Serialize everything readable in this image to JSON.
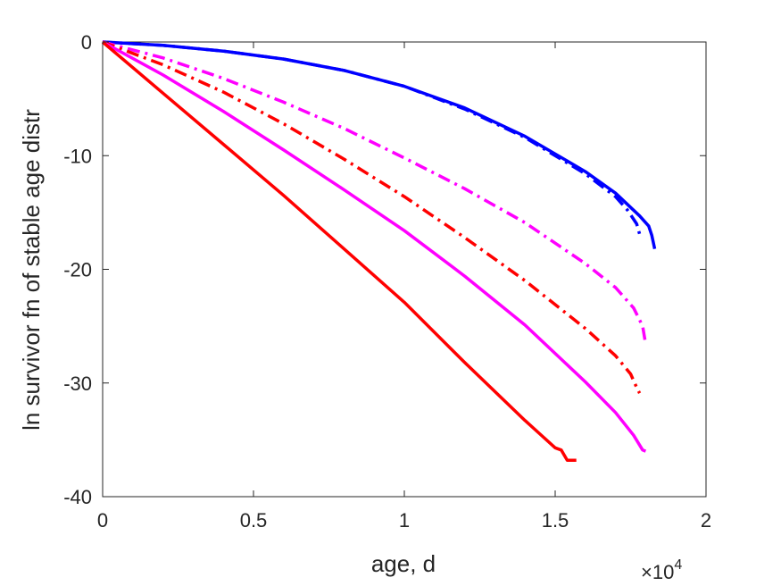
{
  "chart_data": {
    "type": "line",
    "xlabel": "age, d",
    "ylabel": "ln survivor fn of stable age distr",
    "x_exponent_label": {
      "base": "×10",
      "exponent": "4"
    },
    "xlim": [
      0,
      20000
    ],
    "ylim": [
      -40,
      0
    ],
    "xticks": [
      0,
      5000,
      10000,
      15000,
      20000
    ],
    "xtick_labels": [
      "0",
      "0.5",
      "1",
      "1.5",
      "2"
    ],
    "yticks": [
      0,
      -10,
      -20,
      -30,
      -40
    ],
    "ytick_labels": [
      "0",
      "-10",
      "-20",
      "-30",
      "-40"
    ],
    "grid": false,
    "legend": "none",
    "series": [
      {
        "color": "#0000ff",
        "dash": "solid",
        "x": [
          0,
          2000,
          4000,
          6000,
          8000,
          10000,
          12000,
          14000,
          16000,
          17000,
          17800,
          18100,
          18200,
          18300
        ],
        "y": [
          0,
          -0.3,
          -0.8,
          -1.5,
          -2.5,
          -3.9,
          -5.8,
          -8.3,
          -11.4,
          -13.3,
          -15.3,
          -16.2,
          -17.0,
          -18.2
        ]
      },
      {
        "color": "#0000ff",
        "dash": "dashdot",
        "x": [
          0,
          2000,
          4000,
          6000,
          8000,
          10000,
          12000,
          14000,
          16000,
          17000,
          17400,
          17700,
          17800
        ],
        "y": [
          0,
          -0.3,
          -0.8,
          -1.5,
          -2.5,
          -3.9,
          -5.9,
          -8.4,
          -11.6,
          -13.6,
          -14.8,
          -16.0,
          -16.9
        ]
      },
      {
        "color": "#ff00ff",
        "dash": "dashdot",
        "x": [
          0,
          2000,
          4000,
          6000,
          8000,
          10000,
          12000,
          14000,
          16000,
          17000,
          17600,
          17900,
          18000
        ],
        "y": [
          0,
          -1.4,
          -3.2,
          -5.3,
          -7.6,
          -10.2,
          -12.9,
          -15.9,
          -19.5,
          -21.6,
          -23.4,
          -25.0,
          -26.6
        ]
      },
      {
        "color": "#ff0000",
        "dash": "dashdot",
        "x": [
          0,
          2000,
          4000,
          6000,
          8000,
          10000,
          12000,
          14000,
          16000,
          17000,
          17500,
          17700,
          17800
        ],
        "y": [
          0,
          -2.0,
          -4.4,
          -7.2,
          -10.3,
          -13.6,
          -17.2,
          -21.0,
          -25.2,
          -27.6,
          -29.2,
          -30.4,
          -30.9
        ]
      },
      {
        "color": "#ff00ff",
        "dash": "solid",
        "x": [
          0,
          2000,
          4000,
          6000,
          8000,
          10000,
          12000,
          14000,
          16000,
          17000,
          17600,
          17900,
          18000
        ],
        "y": [
          0,
          -2.9,
          -6.1,
          -9.5,
          -13.0,
          -16.6,
          -20.6,
          -24.9,
          -29.9,
          -32.6,
          -34.6,
          -35.9,
          -36.0
        ]
      },
      {
        "color": "#ff0000",
        "dash": "solid",
        "x": [
          0,
          2000,
          4000,
          6000,
          8000,
          10000,
          12000,
          14000,
          14500,
          15000,
          15200,
          15400,
          15500,
          15700
        ],
        "y": [
          0,
          -4.5,
          -9.0,
          -13.5,
          -18.2,
          -22.9,
          -28.2,
          -33.3,
          -34.5,
          -35.7,
          -35.9,
          -36.8,
          -36.8,
          -36.8
        ]
      }
    ]
  }
}
